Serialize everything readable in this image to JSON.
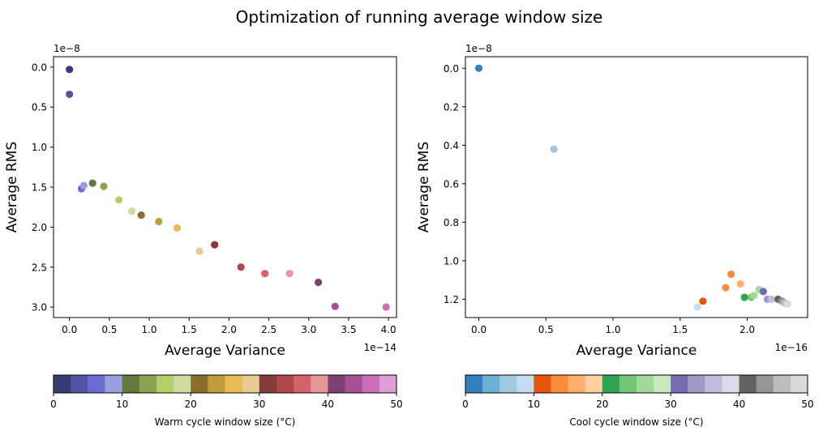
{
  "suptitle": "Optimization of running average window size",
  "chart_data": [
    {
      "type": "scatter",
      "xlabel": "Average Variance",
      "ylabel": "Average RMS",
      "x_offset_label": "1e−14",
      "y_offset_label": "1e−8",
      "x_scale": 1e-14,
      "y_scale": 1e-08,
      "xlim": [
        -0.2,
        4.1
      ],
      "ylim": [
        3.13,
        -0.13
      ],
      "y_inverted": true,
      "grid": false,
      "x_ticks": [
        0.0,
        0.5,
        1.0,
        1.5,
        2.0,
        2.5,
        3.0,
        3.5,
        4.0
      ],
      "x_tick_labels": [
        "0.0",
        "0.5",
        "1.0",
        "1.5",
        "2.0",
        "2.5",
        "3.0",
        "3.5",
        "4.0"
      ],
      "y_ticks": [
        0.0,
        0.5,
        1.0,
        1.5,
        2.0,
        2.5,
        3.0
      ],
      "y_tick_labels": [
        "0.0",
        "0.5",
        "1.0",
        "1.5",
        "2.0",
        "2.5",
        "3.0"
      ],
      "colormap": [
        "#393b79",
        "#5254a3",
        "#6b6ecf",
        "#9c9ede",
        "#637939",
        "#8ca252",
        "#b5cf6b",
        "#cedb9c",
        "#8c6d31",
        "#bd9e39",
        "#e7ba52",
        "#e7cb94",
        "#843c39",
        "#ad494a",
        "#d6616b",
        "#e7969c",
        "#7b4173",
        "#a55194",
        "#ce6dbd",
        "#de9ed6"
      ],
      "points": [
        {
          "window": 2,
          "x": 0.0,
          "y": 0.03
        },
        {
          "window": 4,
          "x": 0.0,
          "y": 0.34
        },
        {
          "window": 7,
          "x": 0.15,
          "y": 1.52
        },
        {
          "window": 9,
          "x": 0.18,
          "y": 1.48
        },
        {
          "window": 11,
          "x": 0.29,
          "y": 1.45
        },
        {
          "window": 13,
          "x": 0.43,
          "y": 1.49
        },
        {
          "window": 16,
          "x": 0.62,
          "y": 1.66
        },
        {
          "window": 18,
          "x": 0.78,
          "y": 1.8
        },
        {
          "window": 21,
          "x": 0.9,
          "y": 1.85
        },
        {
          "window": 23,
          "x": 1.12,
          "y": 1.93
        },
        {
          "window": 26,
          "x": 1.35,
          "y": 2.01
        },
        {
          "window": 29,
          "x": 1.63,
          "y": 2.3
        },
        {
          "window": 31,
          "x": 1.82,
          "y": 2.22
        },
        {
          "window": 33,
          "x": 2.15,
          "y": 2.5
        },
        {
          "window": 36,
          "x": 2.45,
          "y": 2.58
        },
        {
          "window": 38,
          "x": 2.76,
          "y": 2.58
        },
        {
          "window": 41,
          "x": 3.12,
          "y": 2.69
        },
        {
          "window": 43,
          "x": 3.33,
          "y": 2.99
        },
        {
          "window": 46,
          "x": 3.97,
          "y": 3.0
        }
      ],
      "colorbar": {
        "label": "Warm cycle window size (°C)",
        "range": [
          0,
          50
        ],
        "ticks": [
          0,
          10,
          20,
          30,
          40,
          50
        ],
        "tick_labels": [
          "0",
          "10",
          "20",
          "30",
          "40",
          "50"
        ],
        "colors": [
          "#393b79",
          "#5254a3",
          "#6b6ecf",
          "#9c9ede",
          "#637939",
          "#8ca252",
          "#b5cf6b",
          "#cedb9c",
          "#8c6d31",
          "#bd9e39",
          "#e7ba52",
          "#e7cb94",
          "#843c39",
          "#ad494a",
          "#d6616b",
          "#e7969c",
          "#7b4173",
          "#a55194",
          "#ce6dbd",
          "#de9ed6"
        ]
      }
    },
    {
      "type": "scatter",
      "xlabel": "Average Variance",
      "ylabel": "Average RMS",
      "x_offset_label": "1e−16",
      "y_offset_label": "1e−8",
      "x_scale": 1e-16,
      "y_scale": 1e-08,
      "xlim": [
        -0.1,
        2.45
      ],
      "ylim": [
        1.295,
        -0.06
      ],
      "y_inverted": true,
      "grid": false,
      "x_ticks": [
        0.0,
        0.5,
        1.0,
        1.5,
        2.0
      ],
      "x_tick_labels": [
        "0.0",
        "0.5",
        "1.0",
        "1.5",
        "2.0"
      ],
      "y_ticks": [
        0.0,
        0.2,
        0.4,
        0.6,
        0.8,
        1.0,
        1.2
      ],
      "y_tick_labels": [
        "0.0",
        "0.2",
        "0.4",
        "0.6",
        "0.8",
        "1.0",
        "1.2"
      ],
      "colormap": [
        "#3182bd",
        "#6baed6",
        "#9ecae1",
        "#c6dbef",
        "#e6550d",
        "#fd8d3c",
        "#fdae6b",
        "#fdd0a2",
        "#31a354",
        "#74c476",
        "#a1d99b",
        "#c7e9c0",
        "#756bb1",
        "#9e9ac8",
        "#bcbddc",
        "#dadaeb",
        "#636363",
        "#969696",
        "#bdbdbd",
        "#d9d9d9"
      ],
      "points": [
        {
          "window": 2,
          "x": 0.0,
          "y": 0.0
        },
        {
          "window": 5,
          "x": 0.56,
          "y": 0.42
        },
        {
          "window": 8,
          "x": 1.63,
          "y": 1.24
        },
        {
          "window": 11,
          "x": 1.67,
          "y": 1.21
        },
        {
          "window": 13,
          "x": 1.84,
          "y": 1.14
        },
        {
          "window": 14,
          "x": 1.88,
          "y": 1.07
        },
        {
          "window": 17,
          "x": 1.95,
          "y": 1.12
        },
        {
          "window": 21,
          "x": 1.98,
          "y": 1.19
        },
        {
          "window": 23,
          "x": 2.03,
          "y": 1.19
        },
        {
          "window": 25,
          "x": 2.05,
          "y": 1.18
        },
        {
          "window": 27,
          "x": 2.09,
          "y": 1.15
        },
        {
          "window": 31,
          "x": 2.12,
          "y": 1.16
        },
        {
          "window": 34,
          "x": 2.15,
          "y": 1.2
        },
        {
          "window": 37,
          "x": 2.18,
          "y": 1.2
        },
        {
          "window": 41,
          "x": 2.23,
          "y": 1.2
        },
        {
          "window": 43,
          "x": 2.26,
          "y": 1.21
        },
        {
          "window": 46,
          "x": 2.28,
          "y": 1.22
        },
        {
          "window": 48,
          "x": 2.3,
          "y": 1.225
        }
      ],
      "colorbar": {
        "label": "Cool cycle window size (°C)",
        "range": [
          0,
          50
        ],
        "ticks": [
          0,
          10,
          20,
          30,
          40,
          50
        ],
        "tick_labels": [
          "0",
          "10",
          "20",
          "30",
          "40",
          "50"
        ],
        "colors": [
          "#3182bd",
          "#6baed6",
          "#9ecae1",
          "#c6dbef",
          "#e6550d",
          "#fd8d3c",
          "#fdae6b",
          "#fdd0a2",
          "#31a354",
          "#74c476",
          "#a1d99b",
          "#c7e9c0",
          "#756bb1",
          "#9e9ac8",
          "#bcbddc",
          "#dadaeb",
          "#636363",
          "#969696",
          "#bdbdbd",
          "#d9d9d9"
        ]
      }
    }
  ]
}
